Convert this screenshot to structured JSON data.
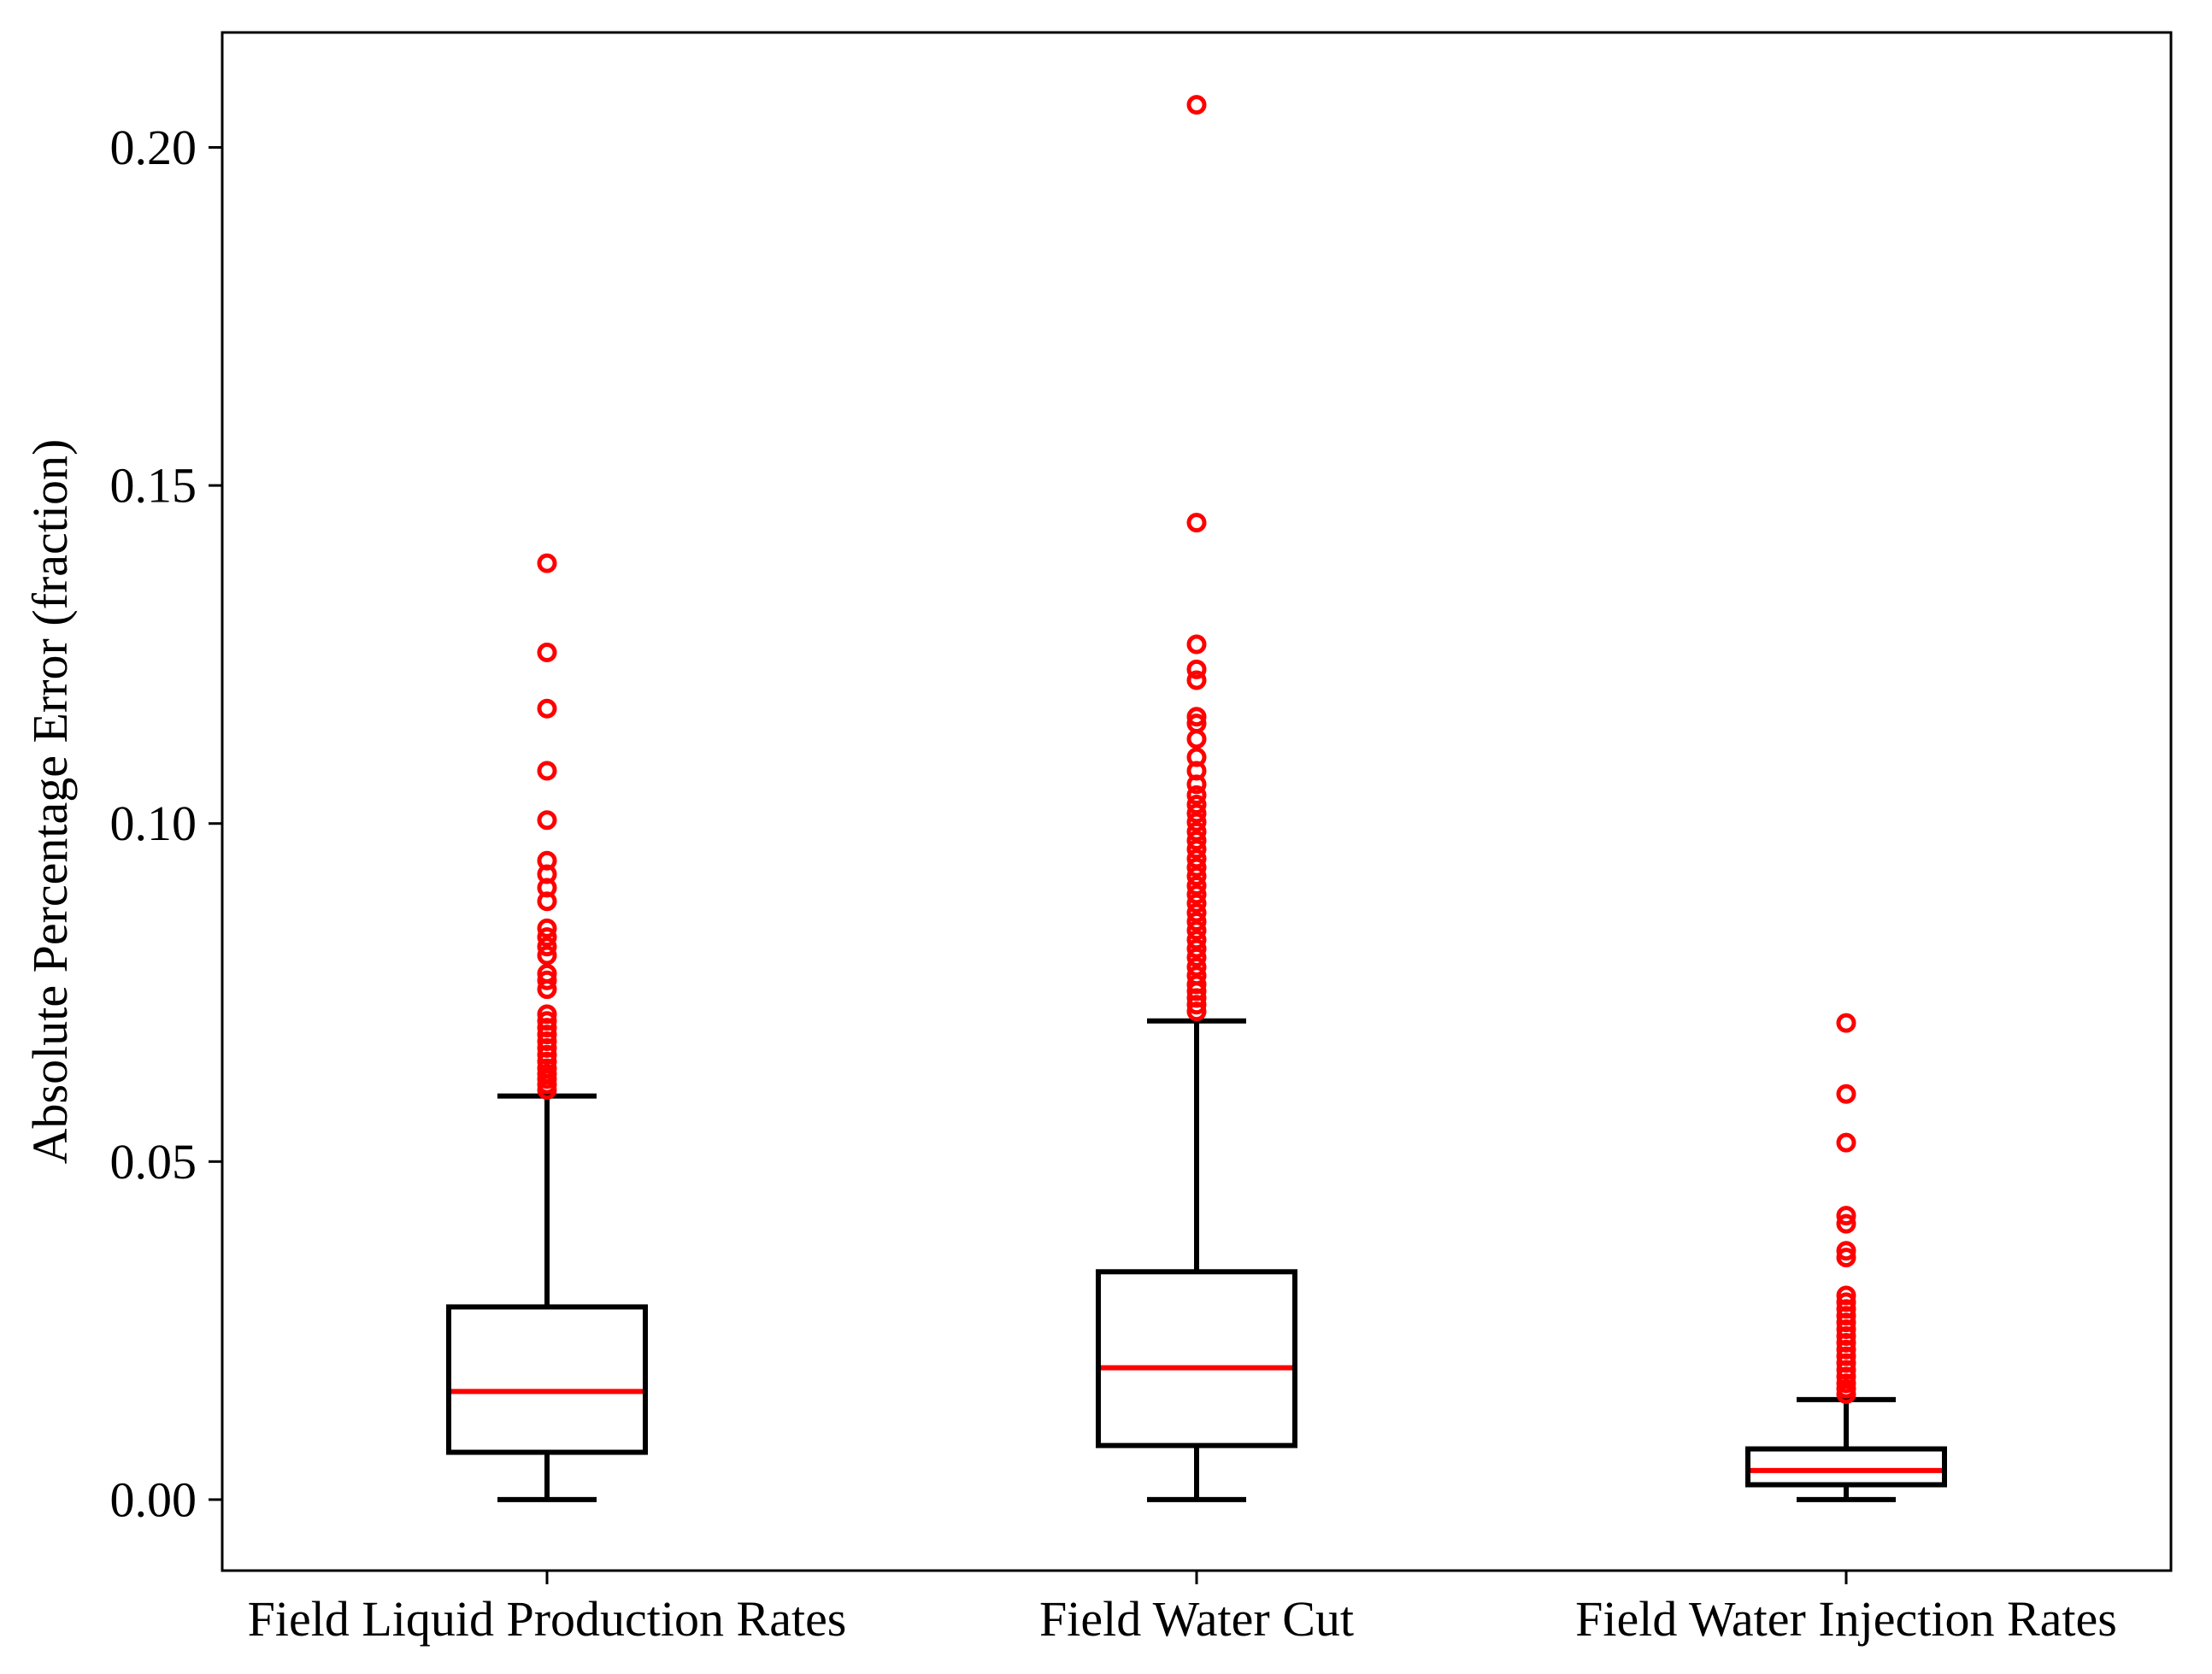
{
  "chart_data": {
    "type": "box",
    "title": "",
    "xlabel": "",
    "ylabel": "Absolute Percentage Error (fraction)",
    "ylim": [
      -0.0105,
      0.217
    ],
    "yticks": [
      0.0,
      0.05,
      0.1,
      0.15,
      0.2
    ],
    "ytick_labels": [
      "0.00",
      "0.05",
      "0.10",
      "0.15",
      "0.20"
    ],
    "grid": false,
    "colors": {
      "box": "#000000",
      "median": "#ff0000",
      "outlier": "#ff0000"
    },
    "categories": [
      "Field Liquid Production Rates",
      "Field Water Cut",
      "Field Water Injection Rates"
    ],
    "boxes": [
      {
        "name": "Field Liquid Production Rates",
        "whisker_low": 0.0,
        "q1": 0.007,
        "median": 0.016,
        "q3": 0.0285,
        "whisker_high": 0.0597,
        "outliers": [
          0.1385,
          0.1253,
          0.117,
          0.1078,
          0.1005,
          0.0945,
          0.0925,
          0.0905,
          0.0885,
          0.0845,
          0.0832,
          0.0818,
          0.0805,
          0.0778,
          0.0768,
          0.0755,
          0.0718,
          0.0708,
          0.0698,
          0.0688,
          0.0678,
          0.0668,
          0.0658,
          0.0648,
          0.0638,
          0.063,
          0.0622,
          0.0614,
          0.0606
        ]
      },
      {
        "name": "Field Water Cut",
        "whisker_low": 0.0,
        "q1": 0.008,
        "median": 0.0195,
        "q3": 0.0337,
        "whisker_high": 0.0708,
        "outliers": [
          0.2063,
          0.1445,
          0.1265,
          0.1228,
          0.1212,
          0.1158,
          0.1148,
          0.1125,
          0.1098,
          0.1078,
          0.1058,
          0.1042,
          0.1028,
          0.1015,
          0.1002,
          0.0988,
          0.0975,
          0.0962,
          0.0948,
          0.0935,
          0.0922,
          0.0908,
          0.0895,
          0.0882,
          0.0868,
          0.0855,
          0.0842,
          0.0828,
          0.0815,
          0.0802,
          0.0788,
          0.0775,
          0.0762,
          0.0752,
          0.0742,
          0.0732,
          0.0722
        ]
      },
      {
        "name": "Field Water Injection Rates",
        "whisker_low": 0.0,
        "q1": 0.0022,
        "median": 0.0043,
        "q3": 0.0075,
        "whisker_high": 0.0148,
        "outliers": [
          0.0705,
          0.06,
          0.0528,
          0.042,
          0.0408,
          0.0368,
          0.0358,
          0.0302,
          0.0292,
          0.0282,
          0.0272,
          0.0262,
          0.0252,
          0.0242,
          0.0232,
          0.0222,
          0.0212,
          0.0202,
          0.0192,
          0.0182,
          0.0172,
          0.0164,
          0.0156
        ]
      }
    ]
  }
}
